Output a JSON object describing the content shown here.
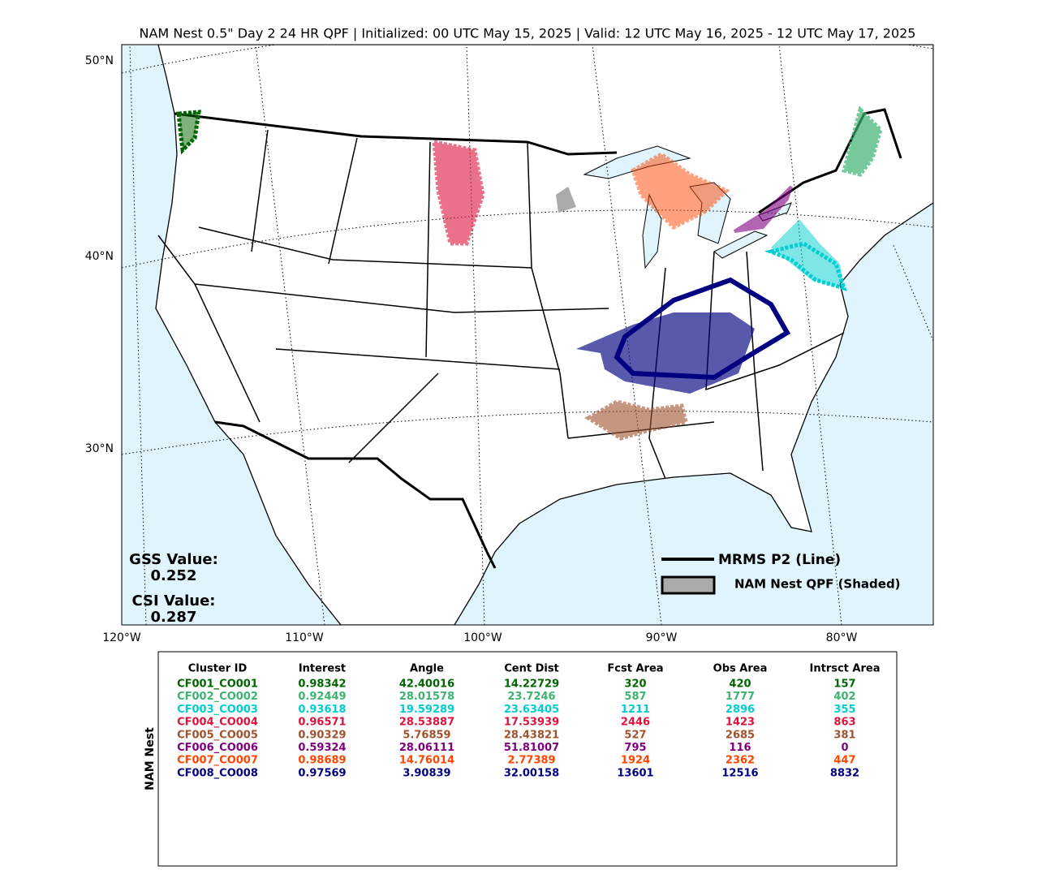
{
  "title": "NAM Nest 0.5\" Day 2 24 HR QPF | Initialized: 00 UTC May 15, 2025 | Valid: 12 UTC May 16, 2025 - 12 UTC May 17, 2025",
  "map": {
    "lat_labels": [
      "50°N",
      "40°N",
      "30°N"
    ],
    "lon_labels": [
      "120°W",
      "110°W",
      "100°W",
      "90°W",
      "80°W"
    ]
  },
  "scores": [
    {
      "label": "GSS Value:",
      "value": "0.252"
    },
    {
      "label": "CSI Value:",
      "value": "0.287"
    }
  ],
  "legend": [
    {
      "label": "MRMS P2 (Line)"
    },
    {
      "label": "NAM Nest QPF (Shaded)"
    }
  ],
  "table": {
    "side_label": "NAM Nest",
    "headers": [
      "Cluster ID",
      "Interest",
      "Angle",
      "Cent Dist",
      "Fcst Area",
      "Obs Area",
      "Intrsct Area"
    ],
    "row_colors": [
      "#006400",
      "#3cb371",
      "#00ced1",
      "#dc143c",
      "#a0522d",
      "#800080",
      "#ff4500",
      "#000080"
    ],
    "rows": [
      [
        "CF001_CO001",
        "0.98342",
        "42.40016",
        "14.22729",
        "320",
        "420",
        "157"
      ],
      [
        "CF002_CO002",
        "0.92449",
        "28.01578",
        "23.7246",
        "587",
        "1777",
        "402"
      ],
      [
        "CF003_CO003",
        "0.93618",
        "19.59289",
        "23.63405",
        "1211",
        "2896",
        "355"
      ],
      [
        "CF004_CO004",
        "0.96571",
        "28.53887",
        "17.53939",
        "2446",
        "1423",
        "863"
      ],
      [
        "CF005_CO005",
        "0.90329",
        "5.76859",
        "28.43821",
        "527",
        "2685",
        "381"
      ],
      [
        "CF006_CO006",
        "0.59324",
        "28.06111",
        "51.81007",
        "795",
        "116",
        "0"
      ],
      [
        "CF007_CO007",
        "0.98689",
        "14.76014",
        "2.77389",
        "1924",
        "2362",
        "447"
      ],
      [
        "CF008_CO008",
        "0.97569",
        "3.90839",
        "32.00158",
        "13601",
        "12516",
        "8832"
      ]
    ]
  }
}
